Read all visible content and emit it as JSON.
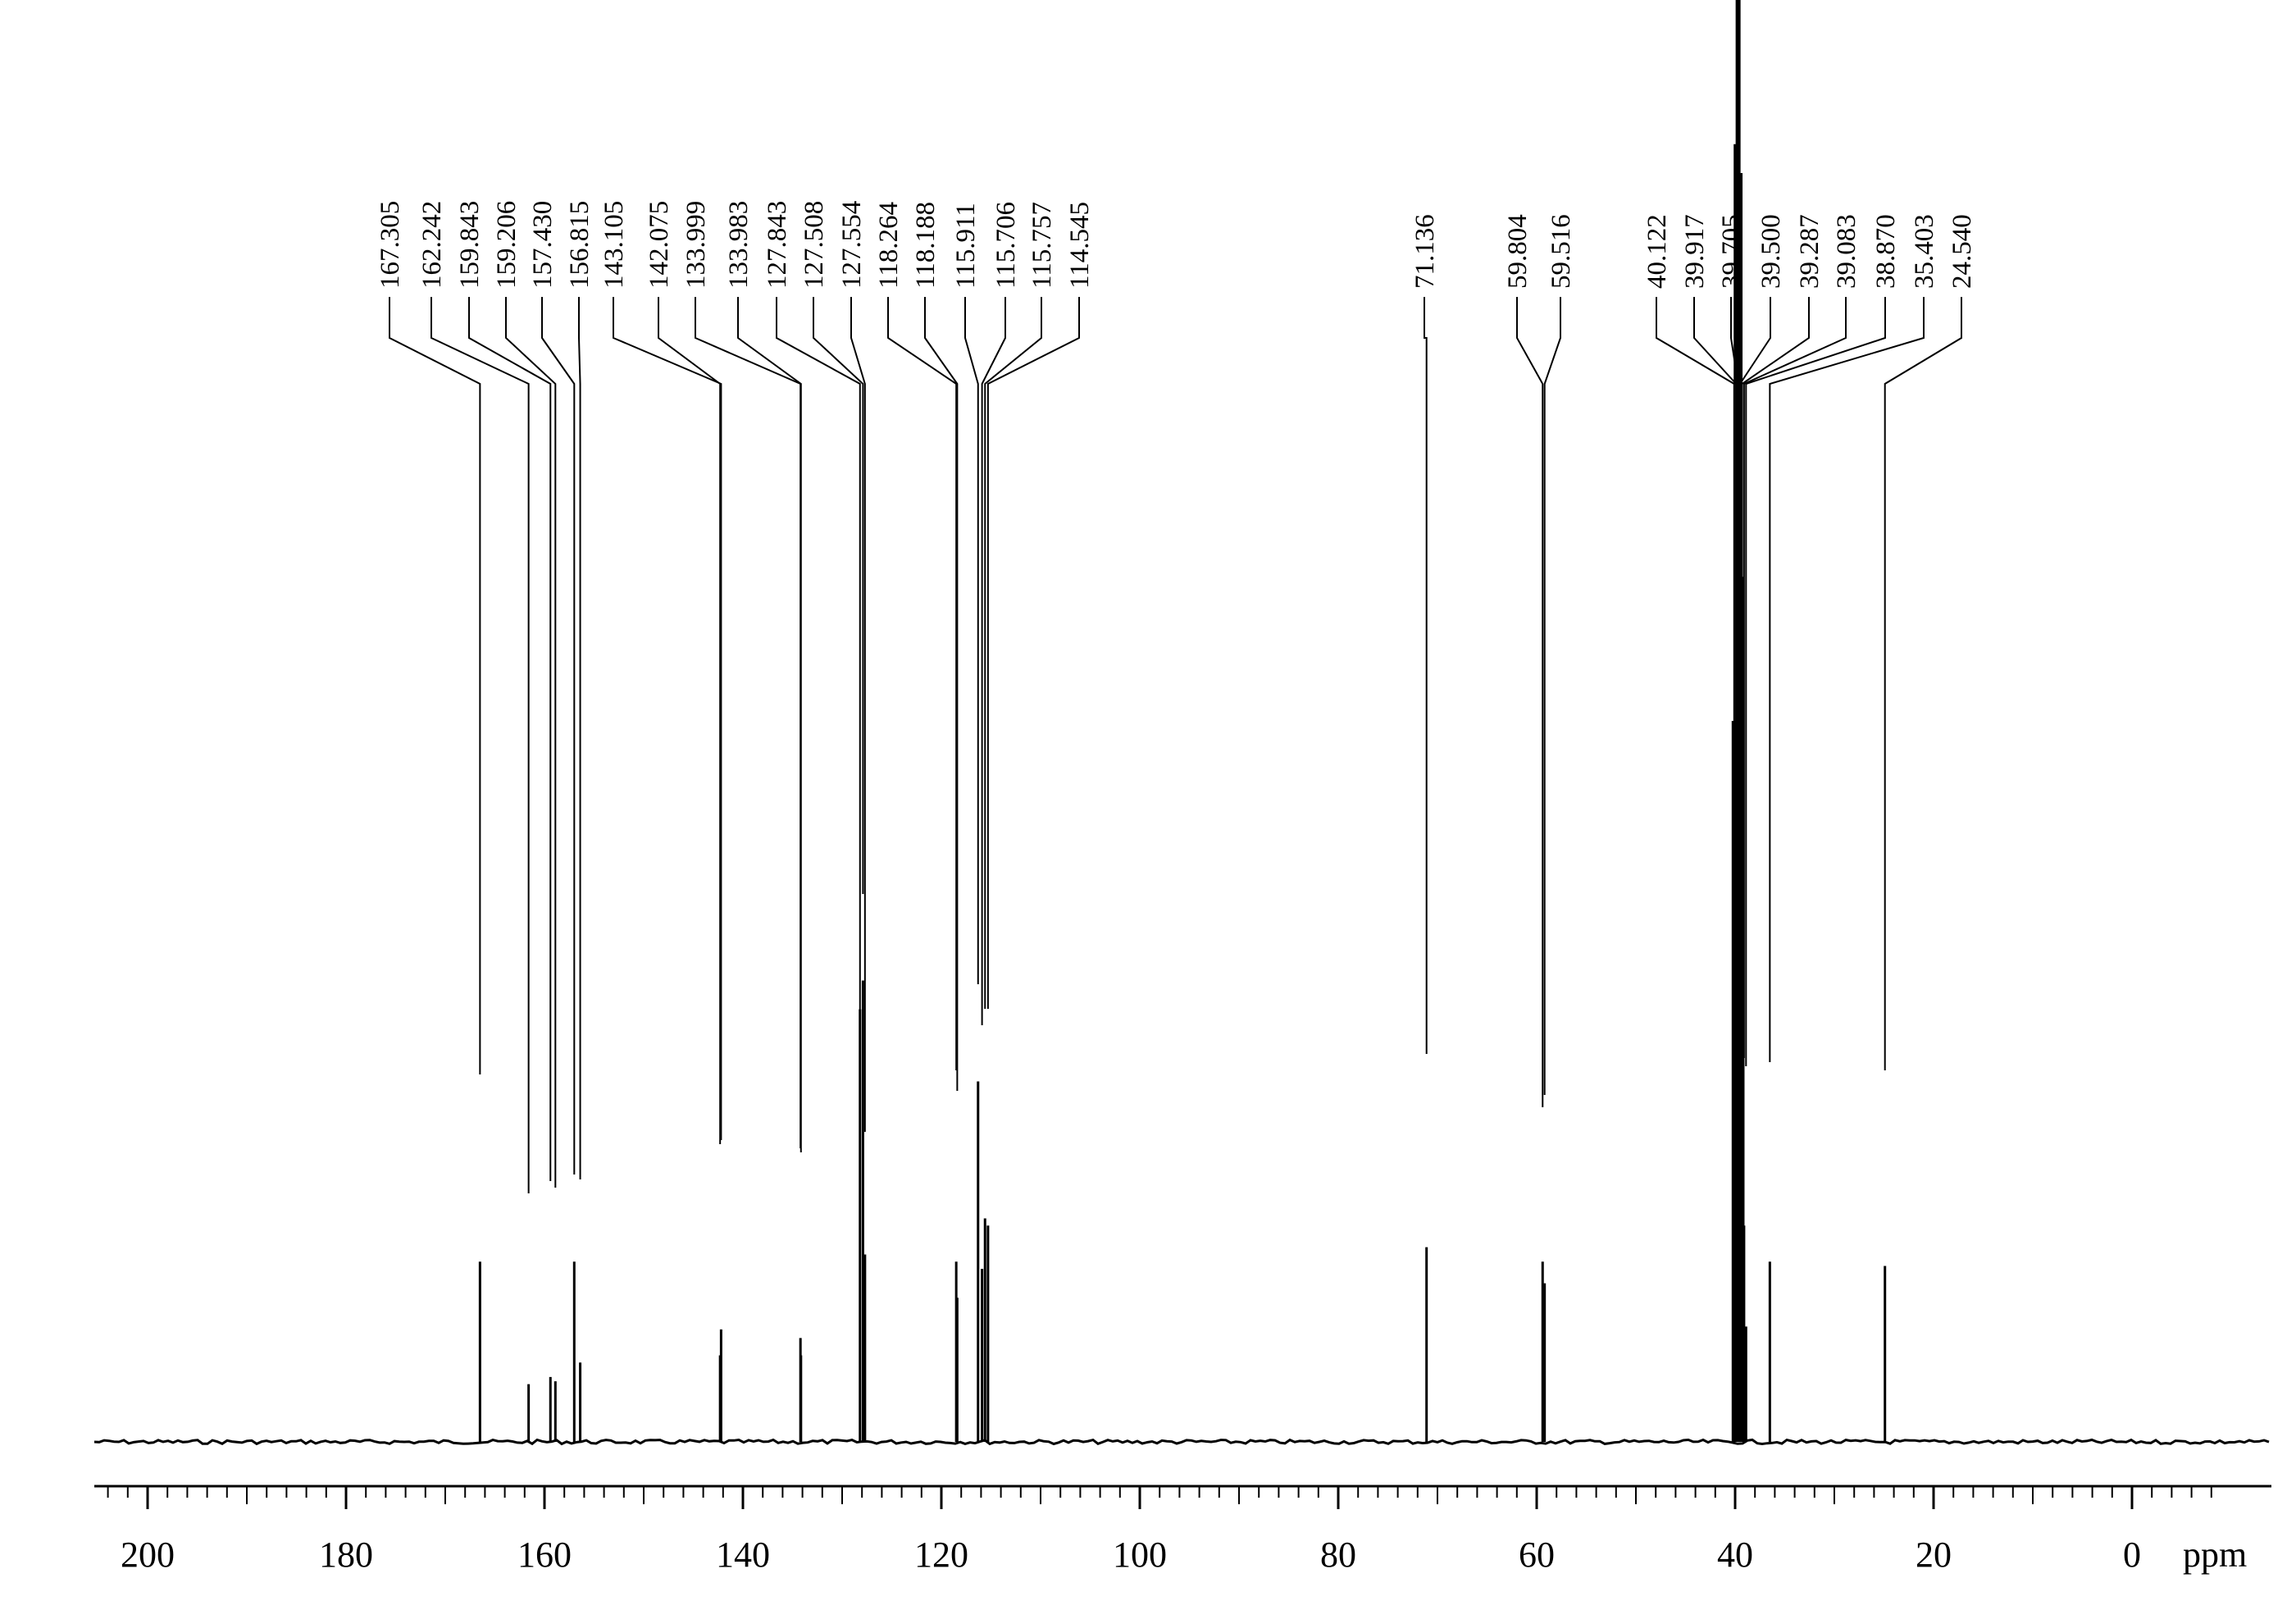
{
  "chart_data": {
    "type": "line",
    "title": "",
    "xlabel": "ppm",
    "ylabel": "",
    "x_reversed": true,
    "xlim": [
      205,
      -8
    ],
    "x_ticks": [
      200,
      180,
      160,
      140,
      120,
      100,
      80,
      60,
      40,
      20,
      0
    ],
    "grid": false,
    "peaks": [
      {
        "label": "167.305",
        "ppm": 166.5,
        "height": 0.125
      },
      {
        "label": "162.242",
        "ppm": 161.6,
        "height": 0.04
      },
      {
        "label": "159.843",
        "ppm": 159.4,
        "height": 0.045
      },
      {
        "label": "159.206",
        "ppm": 158.9,
        "height": 0.042
      },
      {
        "label": "157.430",
        "ppm": 157.0,
        "height": 0.125
      },
      {
        "label": "156.815",
        "ppm": 156.4,
        "height": 0.055
      },
      {
        "label": "143.105",
        "ppm": 142.2,
        "height": 0.078
      },
      {
        "label": "142.075",
        "ppm": 142.3,
        "height": 0.06
      },
      {
        "label": "133.999",
        "ppm": 134.2,
        "height": 0.072
      },
      {
        "label": "133.983",
        "ppm": 134.15,
        "height": 0.06
      },
      {
        "label": "127.843",
        "ppm": 128.2,
        "height": 0.3
      },
      {
        "label": "127.508",
        "ppm": 127.9,
        "height": 0.32
      },
      {
        "label": "127.554",
        "ppm": 127.7,
        "height": 0.13
      },
      {
        "label": "118.264",
        "ppm": 118.5,
        "height": 0.125
      },
      {
        "label": "118.188",
        "ppm": 118.4,
        "height": 0.1
      },
      {
        "label": "115.911",
        "ppm": 116.3,
        "height": 0.25
      },
      {
        "label": "115.706",
        "ppm": 115.9,
        "height": 0.12
      },
      {
        "label": "115.757",
        "ppm": 115.6,
        "height": 0.155
      },
      {
        "label": "114.545",
        "ppm": 115.3,
        "height": 0.15
      },
      {
        "label": "71.136",
        "ppm": 71.1,
        "height": 0.135
      },
      {
        "label": "59.804",
        "ppm": 59.4,
        "height": 0.125
      },
      {
        "label": "59.516",
        "ppm": 59.2,
        "height": 0.11
      },
      {
        "label": "40.122",
        "ppm": 40.1,
        "height": 0.5
      },
      {
        "label": "39.917",
        "ppm": 39.9,
        "height": 0.9
      },
      {
        "label": "39.705",
        "ppm": 39.7,
        "height": 1.0
      },
      {
        "label": "39.500",
        "ppm": 39.5,
        "height": 0.88
      },
      {
        "label": "39.287",
        "ppm": 39.3,
        "height": 0.6
      },
      {
        "label": "39.083",
        "ppm": 39.1,
        "height": 0.15
      },
      {
        "label": "38.870",
        "ppm": 38.9,
        "height": 0.08
      },
      {
        "label": "35.403",
        "ppm": 36.5,
        "height": 0.125
      },
      {
        "label": "24.540",
        "ppm": 24.9,
        "height": 0.122
      }
    ],
    "label_groups": [
      {
        "indices": [
          0,
          1,
          2,
          3,
          4,
          5
        ],
        "text_x": [
          475,
          526,
          572,
          617,
          661,
          706
        ]
      },
      {
        "indices": [
          6,
          7,
          8,
          9,
          10,
          11,
          12
        ],
        "text_x": [
          748,
          803,
          848,
          900,
          947,
          992,
          1038
        ]
      },
      {
        "indices": [
          13,
          14,
          15,
          16,
          17,
          18
        ],
        "text_x": [
          1083,
          1128,
          1177,
          1226,
          1270,
          1316
        ]
      },
      {
        "indices": [
          19
        ],
        "text_x": [
          1737
        ]
      },
      {
        "indices": [
          20,
          21
        ],
        "text_x": [
          1850,
          1903
        ]
      },
      {
        "indices": [
          22,
          23,
          24,
          25,
          26,
          27,
          28,
          29,
          30
        ],
        "text_x": [
          2020,
          2066,
          2111,
          2159,
          2206,
          2251,
          2299,
          2346,
          2392
        ]
      }
    ],
    "peak_line_bottom": [
      1310,
      1455,
      1440,
      1448,
      1432,
      1438,
      1390,
      1395,
      1400,
      1405,
      1240,
      1090,
      1380,
      1305,
      1330,
      1200,
      1250,
      1230,
      1230,
      1285,
      1350,
      1335,
      1200,
      900,
      700,
      1000,
      1200,
      1290,
      1300,
      1295,
      1305
    ]
  }
}
